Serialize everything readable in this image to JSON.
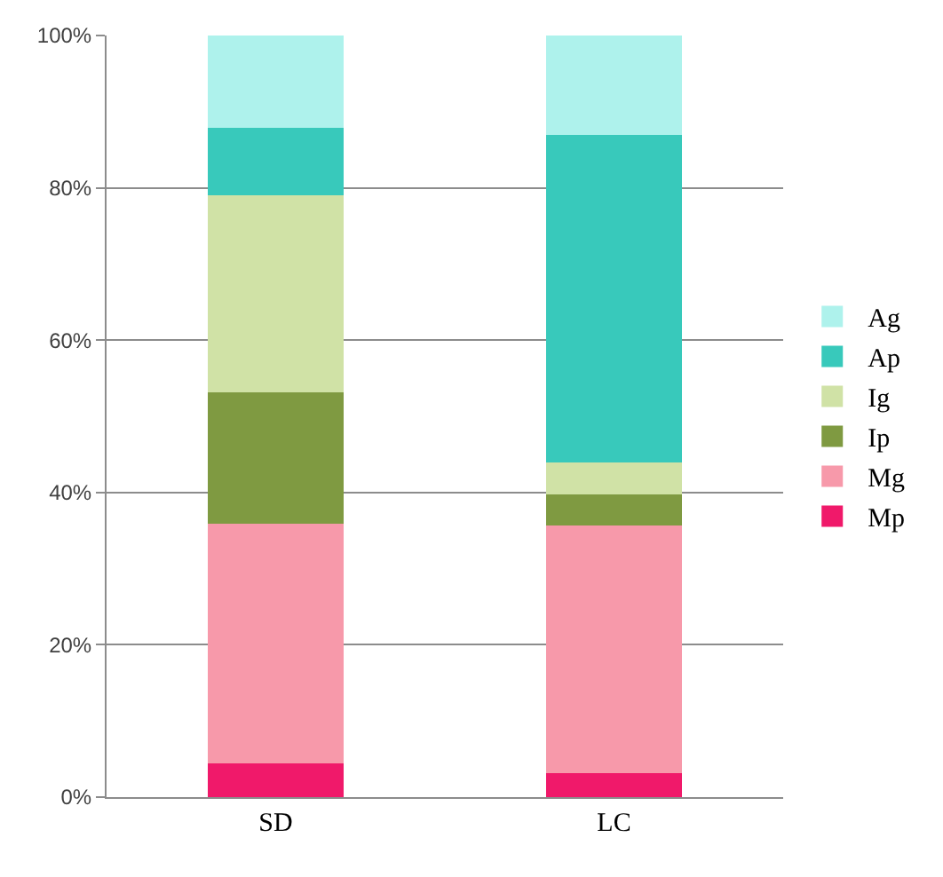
{
  "chart_data": {
    "type": "bar",
    "stacked": true,
    "categories": [
      "SD",
      "LC"
    ],
    "series": [
      {
        "name": "Mp",
        "color": "#f0196a",
        "values": [
          4.4,
          3.2
        ]
      },
      {
        "name": "Mg",
        "color": "#f799aa",
        "values": [
          31.5,
          32.5
        ]
      },
      {
        "name": "Ip",
        "color": "#7f9a41",
        "values": [
          17.3,
          4.0
        ]
      },
      {
        "name": "Ig",
        "color": "#d0e2a6",
        "values": [
          25.8,
          4.2
        ]
      },
      {
        "name": "Ap",
        "color": "#38c9bb",
        "values": [
          8.9,
          43.1
        ]
      },
      {
        "name": "Ag",
        "color": "#aef2ec",
        "values": [
          12.1,
          13.0
        ]
      }
    ],
    "ylim": [
      0,
      100
    ],
    "yticks": [
      {
        "value": 0,
        "label": "0%"
      },
      {
        "value": 20,
        "label": "20%"
      },
      {
        "value": 40,
        "label": "40%"
      },
      {
        "value": 60,
        "label": "60%"
      },
      {
        "value": 80,
        "label": "80%"
      },
      {
        "value": 100,
        "label": "100%"
      }
    ],
    "grid": "y",
    "legend": "right"
  }
}
